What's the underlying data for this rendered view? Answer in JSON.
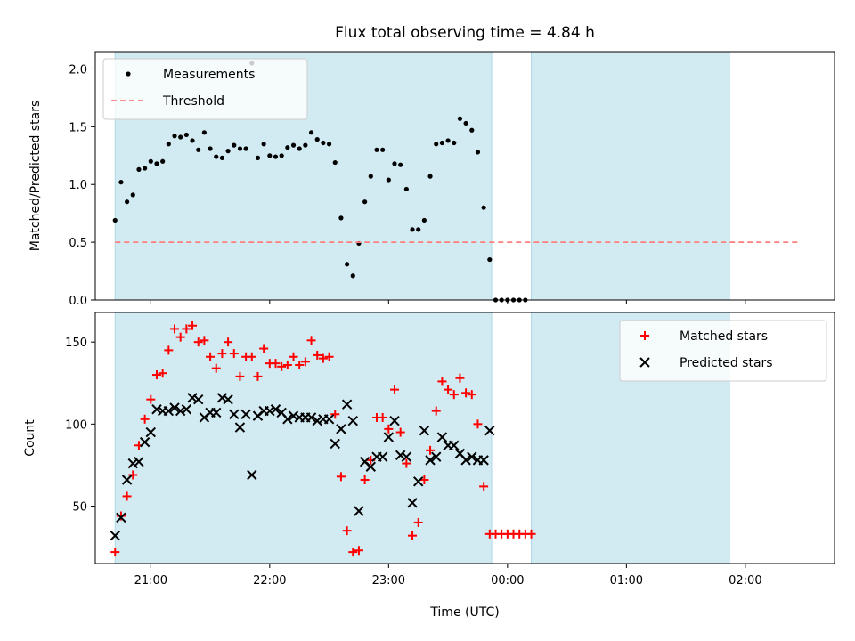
{
  "chart_data": [
    {
      "type": "scatter",
      "title": "Flux total observing time = 4.84 h",
      "xlabel": "",
      "ylabel": "Matched/Predicted stars",
      "ylim": [
        0,
        2.15
      ],
      "yticks": [
        "0.0",
        "0.5",
        "1.0",
        "1.5",
        "2.0"
      ],
      "xlim": [
        "20:32",
        "02:45"
      ],
      "grid": false,
      "legend_position": "top-left",
      "shaded_intervals": [
        [
          "20:42",
          "23:52"
        ],
        [
          "00:12",
          "01:52"
        ]
      ],
      "shade_color": "#add8e6",
      "series": [
        {
          "name": "Measurements",
          "color": "#000000",
          "marker": "dot",
          "points": [
            [
              "20:42",
              0.69
            ],
            [
              "20:45",
              1.02
            ],
            [
              "20:48",
              0.85
            ],
            [
              "20:51",
              0.91
            ],
            [
              "20:54",
              1.13
            ],
            [
              "20:57",
              1.14
            ],
            [
              "21:00",
              1.2
            ],
            [
              "21:03",
              1.18
            ],
            [
              "21:06",
              1.2
            ],
            [
              "21:09",
              1.35
            ],
            [
              "21:12",
              1.42
            ],
            [
              "21:15",
              1.41
            ],
            [
              "21:18",
              1.43
            ],
            [
              "21:21",
              1.38
            ],
            [
              "21:24",
              1.3
            ],
            [
              "21:27",
              1.45
            ],
            [
              "21:30",
              1.31
            ],
            [
              "21:33",
              1.24
            ],
            [
              "21:36",
              1.23
            ],
            [
              "21:39",
              1.29
            ],
            [
              "21:42",
              1.34
            ],
            [
              "21:45",
              1.31
            ],
            [
              "21:48",
              1.31
            ],
            [
              "21:51",
              2.05
            ],
            [
              "21:54",
              1.23
            ],
            [
              "21:57",
              1.35
            ],
            [
              "22:00",
              1.25
            ],
            [
              "22:03",
              1.24
            ],
            [
              "22:06",
              1.25
            ],
            [
              "22:09",
              1.32
            ],
            [
              "22:12",
              1.34
            ],
            [
              "22:15",
              1.31
            ],
            [
              "22:18",
              1.34
            ],
            [
              "22:21",
              1.45
            ],
            [
              "22:24",
              1.39
            ],
            [
              "22:27",
              1.36
            ],
            [
              "22:30",
              1.35
            ],
            [
              "22:33",
              1.19
            ],
            [
              "22:36",
              0.71
            ],
            [
              "22:39",
              0.31
            ],
            [
              "22:42",
              0.21
            ],
            [
              "22:45",
              0.49
            ],
            [
              "22:48",
              0.85
            ],
            [
              "22:51",
              1.07
            ],
            [
              "22:54",
              1.3
            ],
            [
              "22:57",
              1.3
            ],
            [
              "23:00",
              1.04
            ],
            [
              "23:03",
              1.18
            ],
            [
              "23:06",
              1.17
            ],
            [
              "23:09",
              0.96
            ],
            [
              "23:12",
              0.61
            ],
            [
              "23:15",
              0.61
            ],
            [
              "23:18",
              0.69
            ],
            [
              "23:21",
              1.07
            ],
            [
              "23:24",
              1.35
            ],
            [
              "23:27",
              1.36
            ],
            [
              "23:30",
              1.38
            ],
            [
              "23:33",
              1.36
            ],
            [
              "23:36",
              1.57
            ],
            [
              "23:39",
              1.53
            ],
            [
              "23:42",
              1.47
            ],
            [
              "23:45",
              1.28
            ],
            [
              "23:48",
              0.8
            ],
            [
              "23:51",
              0.35
            ],
            [
              "23:54",
              0.0
            ],
            [
              "23:57",
              0.0
            ],
            [
              "00:00",
              0.0
            ],
            [
              "00:03",
              0.0
            ],
            [
              "00:06",
              0.0
            ],
            [
              "00:09",
              0.0
            ]
          ]
        },
        {
          "name": "Threshold",
          "color": "#ff7f7f",
          "style": "dashed",
          "points": [
            [
              "20:42",
              0.5
            ],
            [
              "02:27",
              0.5
            ]
          ]
        }
      ]
    },
    {
      "type": "scatter",
      "title": "",
      "xlabel": "Time (UTC)",
      "ylabel": "Count",
      "ylim": [
        15,
        168
      ],
      "yticks": [
        "50",
        "100",
        "150"
      ],
      "xlim": [
        "20:32",
        "02:45"
      ],
      "xticks": [
        "21:00",
        "22:00",
        "23:00",
        "00:00",
        "01:00",
        "02:00"
      ],
      "grid": false,
      "legend_position": "top-right",
      "shaded_intervals": [
        [
          "20:42",
          "23:52"
        ],
        [
          "00:12",
          "01:52"
        ]
      ],
      "shade_color": "#add8e6",
      "series": [
        {
          "name": "Matched stars",
          "color": "#ff0000",
          "marker": "plus",
          "points": [
            [
              "20:42",
              22
            ],
            [
              "20:45",
              44
            ],
            [
              "20:48",
              56
            ],
            [
              "20:51",
              69
            ],
            [
              "20:54",
              87
            ],
            [
              "20:57",
              103
            ],
            [
              "21:00",
              115
            ],
            [
              "21:03",
              130
            ],
            [
              "21:06",
              131
            ],
            [
              "21:09",
              145
            ],
            [
              "21:12",
              158
            ],
            [
              "21:15",
              153
            ],
            [
              "21:18",
              158
            ],
            [
              "21:21",
              160
            ],
            [
              "21:24",
              150
            ],
            [
              "21:27",
              151
            ],
            [
              "21:30",
              141
            ],
            [
              "21:33",
              134
            ],
            [
              "21:36",
              143
            ],
            [
              "21:39",
              150
            ],
            [
              "21:42",
              143
            ],
            [
              "21:45",
              129
            ],
            [
              "21:48",
              141
            ],
            [
              "21:51",
              141
            ],
            [
              "21:54",
              129
            ],
            [
              "21:57",
              146
            ],
            [
              "22:00",
              137
            ],
            [
              "22:03",
              137
            ],
            [
              "22:06",
              135
            ],
            [
              "22:09",
              136
            ],
            [
              "22:12",
              141
            ],
            [
              "22:15",
              136
            ],
            [
              "22:18",
              138
            ],
            [
              "22:21",
              151
            ],
            [
              "22:24",
              142
            ],
            [
              "22:27",
              140
            ],
            [
              "22:30",
              141
            ],
            [
              "22:33",
              106
            ],
            [
              "22:36",
              68
            ],
            [
              "22:39",
              35
            ],
            [
              "22:42",
              22
            ],
            [
              "22:45",
              23
            ],
            [
              "22:48",
              66
            ],
            [
              "22:51",
              78
            ],
            [
              "22:54",
              104
            ],
            [
              "22:57",
              104
            ],
            [
              "23:00",
              97
            ],
            [
              "23:03",
              121
            ],
            [
              "23:06",
              95
            ],
            [
              "23:09",
              76
            ],
            [
              "23:12",
              32
            ],
            [
              "23:15",
              40
            ],
            [
              "23:18",
              66
            ],
            [
              "23:21",
              84
            ],
            [
              "23:24",
              108
            ],
            [
              "23:27",
              126
            ],
            [
              "23:30",
              121
            ],
            [
              "23:33",
              118
            ],
            [
              "23:36",
              128
            ],
            [
              "23:39",
              119
            ],
            [
              "23:42",
              118
            ],
            [
              "23:45",
              100
            ],
            [
              "23:48",
              62
            ],
            [
              "23:51",
              33
            ],
            [
              "23:54",
              33
            ],
            [
              "23:57",
              33
            ],
            [
              "00:00",
              33
            ],
            [
              "00:03",
              33
            ],
            [
              "00:06",
              33
            ],
            [
              "00:09",
              33
            ],
            [
              "00:12",
              33
            ]
          ]
        },
        {
          "name": "Predicted stars",
          "color": "#000000",
          "marker": "x",
          "points": [
            [
              "20:42",
              32
            ],
            [
              "20:45",
              43
            ],
            [
              "20:48",
              66
            ],
            [
              "20:51",
              76
            ],
            [
              "20:54",
              77
            ],
            [
              "20:57",
              89
            ],
            [
              "21:00",
              95
            ],
            [
              "21:03",
              109
            ],
            [
              "21:06",
              108
            ],
            [
              "21:09",
              108
            ],
            [
              "21:12",
              110
            ],
            [
              "21:15",
              108
            ],
            [
              "21:18",
              109
            ],
            [
              "21:21",
              116
            ],
            [
              "21:24",
              115
            ],
            [
              "21:27",
              104
            ],
            [
              "21:30",
              107
            ],
            [
              "21:33",
              107
            ],
            [
              "21:36",
              116
            ],
            [
              "21:39",
              115
            ],
            [
              "21:42",
              106
            ],
            [
              "21:45",
              98
            ],
            [
              "21:48",
              106
            ],
            [
              "21:51",
              69
            ],
            [
              "21:54",
              105
            ],
            [
              "21:57",
              108
            ],
            [
              "22:00",
              108
            ],
            [
              "22:03",
              109
            ],
            [
              "22:06",
              107
            ],
            [
              "22:09",
              103
            ],
            [
              "22:12",
              105
            ],
            [
              "22:15",
              104
            ],
            [
              "22:18",
              104
            ],
            [
              "22:21",
              104
            ],
            [
              "22:24",
              102
            ],
            [
              "22:27",
              103
            ],
            [
              "22:30",
              103
            ],
            [
              "22:33",
              88
            ],
            [
              "22:36",
              97
            ],
            [
              "22:39",
              112
            ],
            [
              "22:42",
              102
            ],
            [
              "22:45",
              47
            ],
            [
              "22:48",
              77
            ],
            [
              "22:51",
              74
            ],
            [
              "22:54",
              80
            ],
            [
              "22:57",
              80
            ],
            [
              "23:00",
              92
            ],
            [
              "23:03",
              102
            ],
            [
              "23:06",
              81
            ],
            [
              "23:09",
              80
            ],
            [
              "23:12",
              52
            ],
            [
              "23:15",
              65
            ],
            [
              "23:18",
              96
            ],
            [
              "23:21",
              78
            ],
            [
              "23:24",
              80
            ],
            [
              "23:27",
              92
            ],
            [
              "23:30",
              87
            ],
            [
              "23:33",
              87
            ],
            [
              "23:36",
              82
            ],
            [
              "23:39",
              78
            ],
            [
              "23:42",
              80
            ],
            [
              "23:45",
              78
            ],
            [
              "23:48",
              78
            ],
            [
              "23:51",
              96
            ]
          ]
        }
      ]
    }
  ]
}
